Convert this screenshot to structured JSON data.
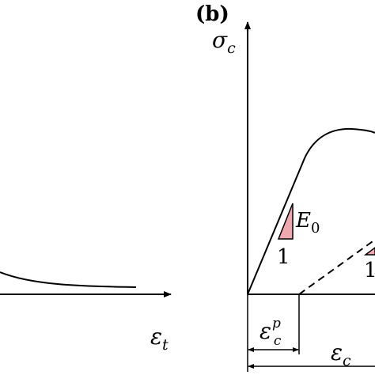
{
  "panel_label": "(b)",
  "left_axis": {
    "x_label": {
      "base": "ε",
      "sub": "t"
    }
  },
  "right_axis": {
    "y_label": {
      "base": "σ",
      "sub": "c"
    },
    "modulus_label": {
      "base": "E",
      "sub": "0"
    },
    "slope_labels": [
      "1",
      "1"
    ],
    "plastic_strain": {
      "base": "ε",
      "sub": "c",
      "sup": "p"
    },
    "strain": {
      "base": "ε",
      "sub": "c"
    }
  }
}
